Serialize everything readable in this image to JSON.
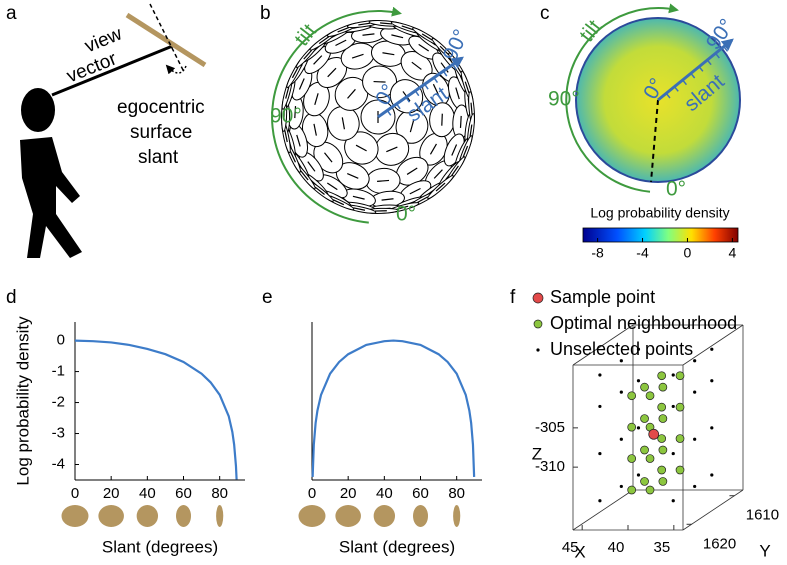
{
  "panels": {
    "a": {
      "label": "a",
      "view_vector": [
        "view",
        "vector"
      ],
      "surface_slant": [
        "egocentric",
        "surface",
        "slant"
      ]
    },
    "b": {
      "label": "b",
      "tilt": "tilt",
      "tilt_90": "90°",
      "tilt_0": "0°",
      "slant": "slant",
      "slant_0": "0°",
      "slant_90": "90°"
    },
    "c": {
      "label": "c",
      "tilt": "tilt",
      "tilt_90": "90°",
      "tilt_0": "0°",
      "slant": "slant",
      "slant_0": "0°",
      "slant_90": "90°",
      "colorbar": {
        "title": "Log probability density",
        "lim": [
          -9.3,
          4.5
        ],
        "ticks": [
          -8,
          -4,
          0,
          4
        ]
      }
    }
  },
  "chart_data": [
    {
      "type": "line",
      "label": "d",
      "ylabel": "Log probability density",
      "xlabel": "Slant (degrees)",
      "color": "#3d7cc9",
      "x": [
        0,
        10,
        20,
        30,
        40,
        50,
        60,
        70,
        75,
        80,
        85,
        87,
        88,
        89,
        89.35
      ],
      "values": [
        0,
        -0.02,
        -0.06,
        -0.14,
        -0.27,
        -0.44,
        -0.69,
        -1.07,
        -1.35,
        -1.75,
        -2.44,
        -2.95,
        -3.36,
        -4.05,
        -4.48
      ],
      "xlim": [
        0,
        94
      ],
      "ylim": [
        -4.5,
        0.6
      ],
      "xticks": [
        0,
        20,
        40,
        60,
        80
      ],
      "yticks": [
        0,
        -1,
        -2,
        -3,
        -4
      ]
    },
    {
      "type": "line",
      "label": "e",
      "xlabel": "Slant (degrees)",
      "color": "#3d7cc9",
      "x": [
        0.35,
        1,
        2,
        3,
        5,
        10,
        15,
        20,
        30,
        40,
        45,
        50,
        60,
        70,
        75,
        80,
        85,
        87,
        88,
        89,
        89.65
      ],
      "values": [
        -4.4,
        -3.36,
        -2.66,
        -2.26,
        -1.75,
        -1.07,
        -0.69,
        -0.44,
        -0.14,
        -0.02,
        0,
        -0.02,
        -0.14,
        -0.44,
        -0.69,
        -1.07,
        -1.75,
        -2.26,
        -2.66,
        -3.36,
        -4.4
      ],
      "xlim": [
        0,
        94
      ],
      "ylim": [
        -4.5,
        0.6
      ],
      "xticks": [
        0,
        20,
        40,
        60,
        80
      ]
    },
    {
      "type": "scatter3d",
      "label": "f",
      "xlabel": "X",
      "ylabel": "Y",
      "zlabel": "Z",
      "xlim": [
        46,
        34
      ],
      "ylim": [
        1622,
        1608
      ],
      "zlim": [
        -318,
        -297
      ],
      "xticks": [
        45,
        40,
        35
      ],
      "yticks": [
        1610,
        1620
      ],
      "zticks": [
        -305,
        -310
      ],
      "series": [
        {
          "name": "Sample point",
          "color": "#e34a4a",
          "x": [
            40
          ],
          "y": [
            1616
          ],
          "z": [
            -308
          ]
        },
        {
          "name": "Optimal neighbourhood",
          "color": "#8cc63f",
          "x": [
            41,
            41,
            41,
            41,
            41,
            41,
            41,
            41,
            41,
            41,
            41,
            41,
            39,
            39,
            39,
            39,
            39,
            39,
            39,
            39,
            39,
            39,
            39,
            39
          ],
          "y": [
            1612,
            1612,
            1612,
            1612,
            1616,
            1616,
            1616,
            1616,
            1619,
            1619,
            1619,
            1619,
            1612,
            1612,
            1612,
            1612,
            1616,
            1616,
            1616,
            1616,
            1619,
            1619,
            1619,
            1619
          ],
          "z": [
            -314,
            -310,
            -306,
            -302,
            -314,
            -310,
            -306,
            -302,
            -314,
            -310,
            -306,
            -302,
            -314,
            -310,
            -306,
            -302,
            -314,
            -310,
            -306,
            -302,
            -314,
            -310,
            -306,
            -302
          ]
        },
        {
          "name": "Unselected points",
          "color": "#000000",
          "x": [
            44,
            44,
            44,
            44,
            44,
            44,
            44,
            44,
            44,
            44,
            44,
            44,
            36,
            36,
            36,
            36,
            36,
            36,
            36,
            36,
            36,
            36,
            36,
            36
          ],
          "y": [
            1611,
            1611,
            1611,
            1611,
            1615,
            1615,
            1615,
            1615,
            1620,
            1620,
            1620,
            1620,
            1611,
            1611,
            1611,
            1611,
            1615,
            1615,
            1615,
            1615,
            1620,
            1620,
            1620,
            1620
          ],
          "z": [
            -315,
            -309,
            -303,
            -299,
            -315,
            -309,
            -303,
            -299,
            -315,
            -309,
            -303,
            -299,
            -315,
            -309,
            -303,
            -299,
            -315,
            -309,
            -303,
            -299,
            -315,
            -309,
            -303,
            -299
          ]
        }
      ]
    }
  ]
}
